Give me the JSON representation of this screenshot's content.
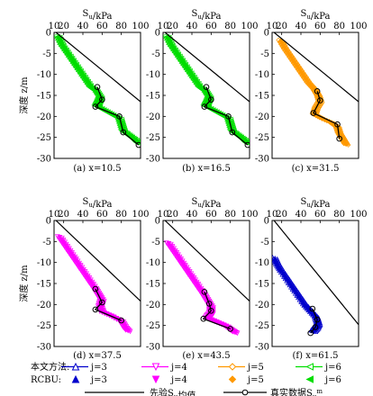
{
  "figure": {
    "y_label": "深度 z/m",
    "x_label": "S_u/kPa",
    "x_ticks": [
      10,
      20,
      40,
      60,
      80,
      100
    ],
    "y_ticks": [
      0,
      -5,
      -10,
      -15,
      -20,
      -25,
      -30
    ]
  },
  "chart_data": [
    {
      "type": "line",
      "label": "(a) x=10.5",
      "xlabel": "S_u/kPa",
      "ylabel": "深度 z/m",
      "xlim": [
        10,
        100
      ],
      "ylim": [
        -30,
        0
      ],
      "x_ticks": [
        10,
        20,
        40,
        60,
        80,
        100
      ],
      "y_ticks": [
        0,
        -5,
        -10,
        -15,
        -20,
        -25,
        -30
      ],
      "color": "#00dd00",
      "prior_mean": {
        "x": [
          12,
          100
        ],
        "y": [
          0,
          -16.5
        ]
      },
      "true_data": {
        "x": [
          55,
          60,
          53,
          78,
          82,
          98
        ],
        "y": [
          -13,
          -16,
          -17.7,
          -20,
          -23.8,
          -26.8
        ]
      },
      "series_band": [
        {
          "x": 14,
          "y": -1
        },
        {
          "x": 18,
          "y": -3
        },
        {
          "x": 24,
          "y": -5
        },
        {
          "x": 30,
          "y": -7
        },
        {
          "x": 36,
          "y": -9
        },
        {
          "x": 42,
          "y": -11
        },
        {
          "x": 48,
          "y": -13
        },
        {
          "x": 54,
          "y": -14
        },
        {
          "x": 58,
          "y": -15.5
        },
        {
          "x": 56,
          "y": -16.5
        },
        {
          "x": 54,
          "y": -17.5
        },
        {
          "x": 62,
          "y": -18.5
        },
        {
          "x": 70,
          "y": -19.5
        },
        {
          "x": 78,
          "y": -20.5
        },
        {
          "x": 80,
          "y": -22
        },
        {
          "x": 82,
          "y": -23.5
        },
        {
          "x": 88,
          "y": -24.5
        },
        {
          "x": 94,
          "y": -25.5
        },
        {
          "x": 98,
          "y": -26.5
        }
      ]
    },
    {
      "type": "line",
      "label": "(b) x=16.5",
      "xlabel": "S_u/kPa",
      "ylabel": "深度 z/m",
      "xlim": [
        10,
        100
      ],
      "ylim": [
        -30,
        0
      ],
      "x_ticks": [
        10,
        20,
        40,
        60,
        80,
        100
      ],
      "y_ticks": [
        0,
        -5,
        -10,
        -15,
        -20,
        -25,
        -30
      ],
      "color": "#00dd00",
      "prior_mean": {
        "x": [
          12,
          100
        ],
        "y": [
          0,
          -16.5
        ]
      },
      "true_data": {
        "x": [
          55,
          60,
          53,
          78,
          82,
          98
        ],
        "y": [
          -13,
          -16,
          -17.7,
          -20,
          -23.8,
          -26.8
        ]
      },
      "series_band": [
        {
          "x": 14,
          "y": -1
        },
        {
          "x": 18,
          "y": -3
        },
        {
          "x": 24,
          "y": -5
        },
        {
          "x": 30,
          "y": -7
        },
        {
          "x": 36,
          "y": -9
        },
        {
          "x": 42,
          "y": -11
        },
        {
          "x": 48,
          "y": -13
        },
        {
          "x": 54,
          "y": -14
        },
        {
          "x": 58,
          "y": -15.5
        },
        {
          "x": 56,
          "y": -16.5
        },
        {
          "x": 54,
          "y": -17.5
        },
        {
          "x": 62,
          "y": -18.5
        },
        {
          "x": 70,
          "y": -19.5
        },
        {
          "x": 78,
          "y": -20.5
        },
        {
          "x": 80,
          "y": -22
        },
        {
          "x": 82,
          "y": -23.5
        },
        {
          "x": 88,
          "y": -24.5
        },
        {
          "x": 94,
          "y": -25.5
        },
        {
          "x": 98,
          "y": -26.5
        }
      ]
    },
    {
      "type": "line",
      "label": "(c) x=31.5",
      "xlabel": "S_u/kPa",
      "ylabel": "深度 z/m",
      "xlim": [
        10,
        100
      ],
      "ylim": [
        -30,
        0
      ],
      "x_ticks": [
        10,
        20,
        40,
        60,
        80,
        100
      ],
      "y_ticks": [
        0,
        -5,
        -10,
        -15,
        -20,
        -25,
        -30
      ],
      "color": "#ff9900",
      "prior_mean": {
        "x": [
          12,
          100
        ],
        "y": [
          0,
          -16.5
        ]
      },
      "true_data": {
        "x": [
          57,
          60,
          53,
          78,
          80
        ],
        "y": [
          -14,
          -16.2,
          -19.2,
          -21.9,
          -25.3
        ]
      },
      "series_band": [
        {
          "x": 19,
          "y": -2
        },
        {
          "x": 24,
          "y": -4
        },
        {
          "x": 30,
          "y": -6
        },
        {
          "x": 36,
          "y": -8
        },
        {
          "x": 42,
          "y": -10
        },
        {
          "x": 48,
          "y": -12
        },
        {
          "x": 54,
          "y": -13.5
        },
        {
          "x": 58,
          "y": -15
        },
        {
          "x": 60,
          "y": -16.5
        },
        {
          "x": 56,
          "y": -18
        },
        {
          "x": 54,
          "y": -19.5
        },
        {
          "x": 62,
          "y": -20.5
        },
        {
          "x": 72,
          "y": -21.5
        },
        {
          "x": 78,
          "y": -22.5
        },
        {
          "x": 80,
          "y": -24
        },
        {
          "x": 84,
          "y": -25.5
        },
        {
          "x": 88,
          "y": -27
        }
      ]
    },
    {
      "type": "line",
      "label": "(d) x=37.5",
      "xlabel": "S_u/kPa",
      "ylabel": "深度 z/m",
      "xlim": [
        10,
        100
      ],
      "ylim": [
        -30,
        0
      ],
      "x_ticks": [
        10,
        20,
        40,
        60,
        80,
        100
      ],
      "y_ticks": [
        0,
        -5,
        -10,
        -15,
        -20,
        -25,
        -30
      ],
      "color": "#ff00ff",
      "prior_mean": {
        "x": [
          12,
          100
        ],
        "y": [
          0,
          -19.2
        ]
      },
      "true_data": {
        "x": [
          53,
          60,
          53,
          80
        ],
        "y": [
          -16.3,
          -19.5,
          -21.2,
          -23.8
        ]
      },
      "series_band": [
        {
          "x": 16,
          "y": -4
        },
        {
          "x": 22,
          "y": -6
        },
        {
          "x": 28,
          "y": -8
        },
        {
          "x": 34,
          "y": -10
        },
        {
          "x": 40,
          "y": -12
        },
        {
          "x": 46,
          "y": -14
        },
        {
          "x": 52,
          "y": -16
        },
        {
          "x": 56,
          "y": -17.5
        },
        {
          "x": 60,
          "y": -19
        },
        {
          "x": 58,
          "y": -20.5
        },
        {
          "x": 60,
          "y": -21.8
        },
        {
          "x": 70,
          "y": -22.8
        },
        {
          "x": 80,
          "y": -24
        },
        {
          "x": 84,
          "y": -25.5
        },
        {
          "x": 88,
          "y": -26.5
        }
      ]
    },
    {
      "type": "line",
      "label": "(e) x=43.5",
      "xlabel": "S_u/kPa",
      "ylabel": "深度 z/m",
      "xlim": [
        10,
        100
      ],
      "ylim": [
        -30,
        0
      ],
      "x_ticks": [
        10,
        20,
        40,
        60,
        80,
        100
      ],
      "y_ticks": [
        0,
        -5,
        -10,
        -15,
        -20,
        -25,
        -30
      ],
      "color": "#ff00ff",
      "prior_mean": {
        "x": [
          12,
          100
        ],
        "y": [
          0,
          -19.2
        ]
      },
      "true_data": {
        "x": [
          53,
          58,
          60,
          52,
          80
        ],
        "y": [
          -17,
          -19.8,
          -21.5,
          -23.4,
          -25.8
        ]
      },
      "series_band": [
        {
          "x": 16,
          "y": -5.5
        },
        {
          "x": 22,
          "y": -7.5
        },
        {
          "x": 28,
          "y": -9.5
        },
        {
          "x": 34,
          "y": -11.5
        },
        {
          "x": 40,
          "y": -13.5
        },
        {
          "x": 46,
          "y": -15.5
        },
        {
          "x": 52,
          "y": -17.5
        },
        {
          "x": 56,
          "y": -19
        },
        {
          "x": 60,
          "y": -20.5
        },
        {
          "x": 60,
          "y": -22
        },
        {
          "x": 56,
          "y": -23.2
        },
        {
          "x": 66,
          "y": -24.2
        },
        {
          "x": 76,
          "y": -25.2
        },
        {
          "x": 82,
          "y": -26.2
        },
        {
          "x": 86,
          "y": -26.8
        }
      ]
    },
    {
      "type": "line",
      "label": "(f) x=61.5",
      "xlabel": "S_u/kPa",
      "ylabel": "深度 z/m",
      "xlim": [
        10,
        100
      ],
      "ylim": [
        -30,
        0
      ],
      "x_ticks": [
        10,
        20,
        40,
        60,
        80,
        100
      ],
      "y_ticks": [
        0,
        -5,
        -10,
        -15,
        -20,
        -25,
        -30
      ],
      "color": "#0000cc",
      "prior_mean": {
        "x": [
          12,
          100
        ],
        "y": [
          0,
          -24.8
        ]
      },
      "true_data": {
        "x": [
          52,
          57,
          55,
          50
        ],
        "y": [
          -21,
          -23.6,
          -25.4,
          -26.8
        ]
      },
      "series_band": [
        {
          "x": 13,
          "y": -9
        },
        {
          "x": 16,
          "y": -10.5
        },
        {
          "x": 20,
          "y": -12
        },
        {
          "x": 26,
          "y": -14
        },
        {
          "x": 32,
          "y": -16
        },
        {
          "x": 38,
          "y": -18
        },
        {
          "x": 44,
          "y": -20
        },
        {
          "x": 50,
          "y": -21.5
        },
        {
          "x": 56,
          "y": -23
        },
        {
          "x": 58,
          "y": -24.5
        },
        {
          "x": 56,
          "y": -25.5
        },
        {
          "x": 52,
          "y": -26.5
        }
      ]
    }
  ],
  "legend": {
    "rows": [
      {
        "label": "本文方法:",
        "items": [
          {
            "text": "j=3",
            "color": "#0000cc",
            "marker": "triangle-up-open"
          },
          {
            "text": "j=4",
            "color": "#ff00ff",
            "marker": "triangle-down-open"
          },
          {
            "text": "j=5",
            "color": "#ff9900",
            "marker": "diamond-open"
          },
          {
            "text": "j=6",
            "color": "#00dd00",
            "marker": "triangle-left-open"
          }
        ]
      },
      {
        "label": "RCBU:",
        "items": [
          {
            "text": "j=3",
            "color": "#0000cc",
            "marker": "triangle-up-filled"
          },
          {
            "text": "j=4",
            "color": "#ff00ff",
            "marker": "triangle-down-filled"
          },
          {
            "text": "j=5",
            "color": "#ff9900",
            "marker": "diamond-filled"
          },
          {
            "text": "j=6",
            "color": "#00dd00",
            "marker": "triangle-left-filled"
          }
        ]
      }
    ],
    "prior_mean_label": "先验S_u均值",
    "true_data_label": "真实数据S_u^m"
  }
}
